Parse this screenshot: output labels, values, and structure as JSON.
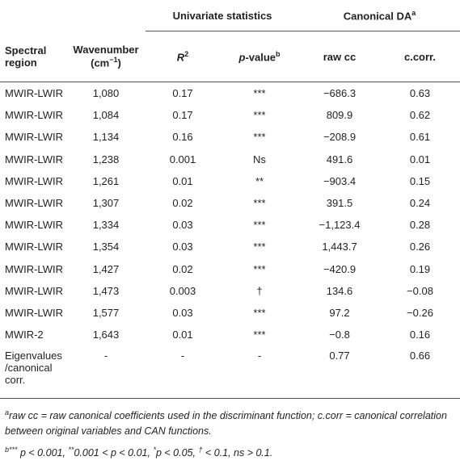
{
  "table": {
    "group_headers": [
      {
        "text": "Univariate statistics"
      },
      {
        "text": "Canonical DA",
        "sup": "a"
      }
    ],
    "columns": [
      {
        "text": "Spectral region"
      },
      {
        "text": "Wavenumber (cm",
        "sup": "−1",
        "after": ")"
      },
      {
        "italic": "R",
        "sup": "2"
      },
      {
        "italic": "p",
        "text": "-value",
        "sup": "b"
      },
      {
        "text": "raw cc"
      },
      {
        "text": "c.corr."
      }
    ],
    "rows": [
      [
        "MWIR-LWIR",
        "1,080",
        "0.17",
        "***",
        "−686.3",
        "0.63"
      ],
      [
        "MWIR-LWIR",
        "1,084",
        "0.17",
        "***",
        "809.9",
        "0.62"
      ],
      [
        "MWIR-LWIR",
        "1,134",
        "0.16",
        "***",
        "−208.9",
        "0.61"
      ],
      [
        "MWIR-LWIR",
        "1,238",
        "0.001",
        "Ns",
        "491.6",
        "0.01"
      ],
      [
        "MWIR-LWIR",
        "1,261",
        "0.01",
        "**",
        "−903.4",
        "0.15"
      ],
      [
        "MWIR-LWIR",
        "1,307",
        "0.02",
        "***",
        "391.5",
        "0.24"
      ],
      [
        "MWIR-LWIR",
        "1,334",
        "0.03",
        "***",
        "−1,123.4",
        "0.28"
      ],
      [
        "MWIR-LWIR",
        "1,354",
        "0.03",
        "***",
        "1,443.7",
        "0.26"
      ],
      [
        "MWIR-LWIR",
        "1,427",
        "0.02",
        "***",
        "−420.9",
        "0.19"
      ],
      [
        "MWIR-LWIR",
        "1,473",
        "0.003",
        "†",
        "134.6",
        "−0.08"
      ],
      [
        "MWIR-LWIR",
        "1,577",
        "0.03",
        "***",
        "97.2",
        "−0.26"
      ],
      [
        "MWIR-2",
        "1,643",
        "0.01",
        "***",
        "−0.8",
        "0.16"
      ],
      [
        "Eigenvalues /canonical corr.",
        "-",
        "-",
        "-",
        "0.77",
        "0.66"
      ]
    ],
    "footnotes": [
      [
        {
          "sup": "a"
        },
        {
          "text": "raw cc = raw canonical coefficients used in the discriminant function; c.corr = canonical correlation between original variables and CAN functions."
        }
      ],
      [
        {
          "sup": "b***"
        },
        {
          "text": " p < 0.001, "
        },
        {
          "sup": "**"
        },
        {
          "text": "0.001 < p < 0.01, "
        },
        {
          "sup": "*"
        },
        {
          "text": "p < 0.05, "
        },
        {
          "sup": "†"
        },
        {
          "text": " < 0.1, ns > 0.1."
        }
      ]
    ]
  }
}
